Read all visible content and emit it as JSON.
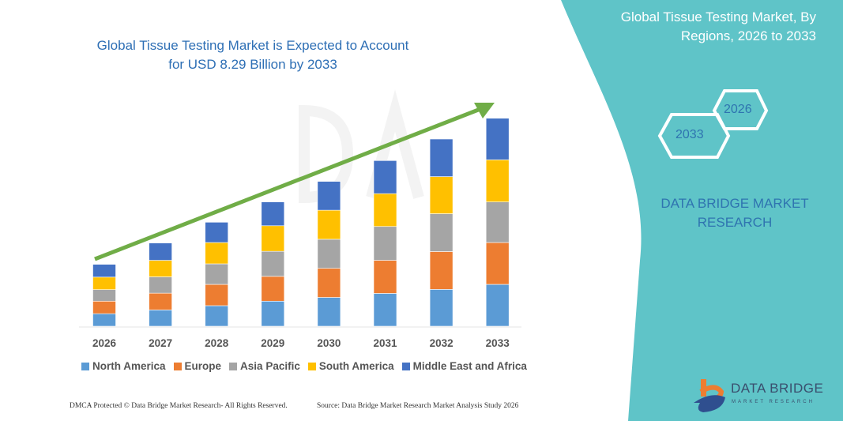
{
  "header": {
    "title": "Global Tissue Testing Market is Expected to Account for USD 8.29 Billion by 2033"
  },
  "side_panel": {
    "title": "Global Tissue Testing Market, By Regions, 2026 to 2033",
    "hex_start": "2026",
    "hex_end": "2033",
    "brand": "DATA BRIDGE MARKET RESEARCH",
    "logo_text": "DATA BRIDGE",
    "logo_subtext": "MARKET RESEARCH",
    "color": "#5fc4c8"
  },
  "footer": {
    "copyright": "DMCA Protected © Data Bridge Market Research-  All Rights Reserved.",
    "source": "Source: Data Bridge Market Research  Market Analysis Study 2026"
  },
  "chart_data": {
    "type": "bar",
    "stacked": true,
    "title": "Global Tissue Testing Market is Expected to Account for USD 8.29 Billion by 2033",
    "categories": [
      "2026",
      "2027",
      "2028",
      "2029",
      "2030",
      "2031",
      "2032",
      "2033"
    ],
    "series": [
      {
        "name": "North America",
        "color": "#5b9bd5",
        "values": [
          0.5,
          0.65,
          0.82,
          1.0,
          1.15,
          1.31,
          1.47,
          1.67
        ]
      },
      {
        "name": "Europe",
        "color": "#ed7d31",
        "values": [
          0.5,
          0.67,
          0.85,
          0.99,
          1.16,
          1.32,
          1.51,
          1.67
        ]
      },
      {
        "name": "Asia Pacific",
        "color": "#a5a5a5",
        "values": [
          0.46,
          0.65,
          0.82,
          1.0,
          1.16,
          1.35,
          1.51,
          1.62
        ]
      },
      {
        "name": "South America",
        "color": "#ffc000",
        "values": [
          0.5,
          0.66,
          0.85,
          1.02,
          1.16,
          1.31,
          1.48,
          1.68
        ]
      },
      {
        "name": "Middle East and Africa",
        "color": "#4472c4",
        "values": [
          0.51,
          0.69,
          0.81,
          0.95,
          1.15,
          1.32,
          1.5,
          1.66
        ]
      }
    ],
    "y_axis_visible": false,
    "grid": false,
    "legend_position": "bottom",
    "trend_arrow_color": "#70ad47"
  }
}
